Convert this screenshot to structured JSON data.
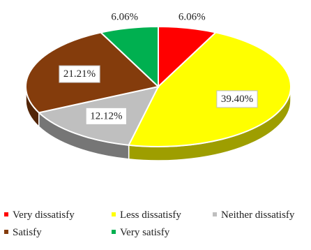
{
  "chart_data": {
    "type": "pie",
    "title": "",
    "categories": [
      "Very dissatisfy",
      "Less dissatisfy",
      "Neither dissatisfy",
      "Satisfy",
      "Very satisfy"
    ],
    "values": [
      6.06,
      39.4,
      12.12,
      21.21,
      6.06
    ],
    "data_labels": [
      "6.06%",
      "39.40%",
      "12.12%",
      "21.21%",
      "6.06%"
    ],
    "colors": [
      "#ff0000",
      "#ffff00",
      "#bfbfbf",
      "#843c0c",
      "#00b050"
    ],
    "style": "3d",
    "legend_position": "bottom"
  }
}
